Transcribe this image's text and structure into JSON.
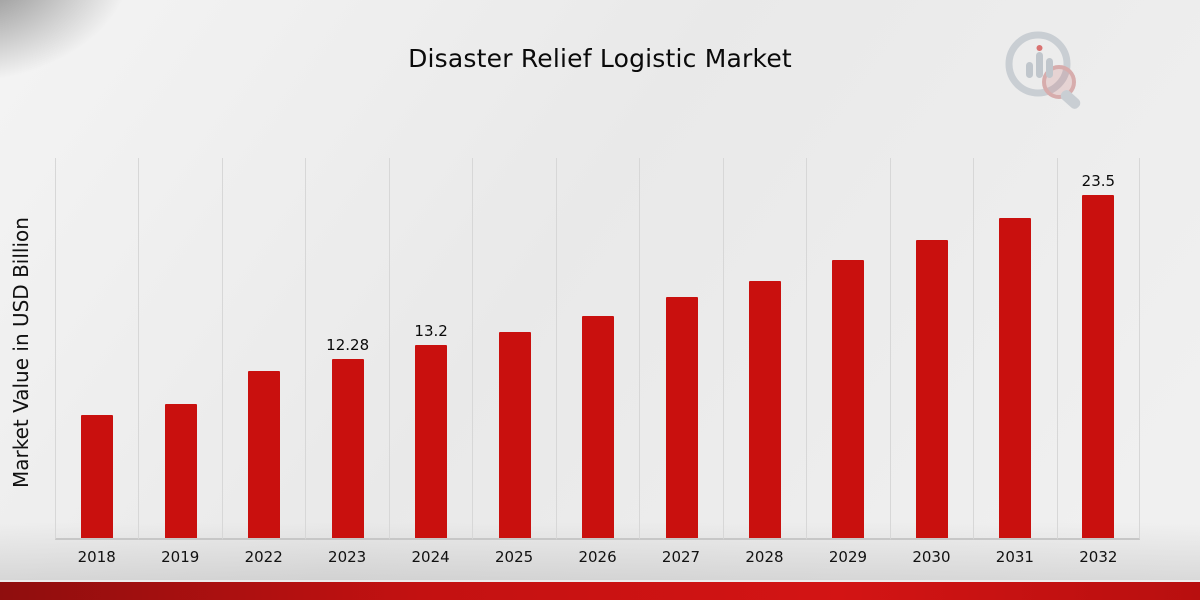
{
  "page": {
    "title": "Disaster Relief Logistic Market"
  },
  "icons": {
    "logo": "bar-chart-magnifier-logo"
  },
  "chart_data": {
    "type": "bar",
    "title": "Disaster Relief Logistic Market",
    "xlabel": "",
    "ylabel": "Market Value in USD Billion",
    "categories": [
      "2018",
      "2019",
      "2022",
      "2023",
      "2024",
      "2025",
      "2026",
      "2027",
      "2028",
      "2029",
      "2030",
      "2031",
      "2032"
    ],
    "values": [
      8.4,
      9.2,
      11.4,
      12.28,
      13.2,
      14.1,
      15.2,
      16.5,
      17.6,
      19.0,
      20.4,
      21.9,
      23.5
    ],
    "labels": [
      "",
      "",
      "",
      "12.28",
      "13.2",
      "",
      "",
      "",
      "",
      "",
      "",
      "",
      "23.5"
    ],
    "ylim": [
      0,
      26
    ],
    "bar_color": "#c9100e",
    "grid": "vertical",
    "legend": "none"
  }
}
